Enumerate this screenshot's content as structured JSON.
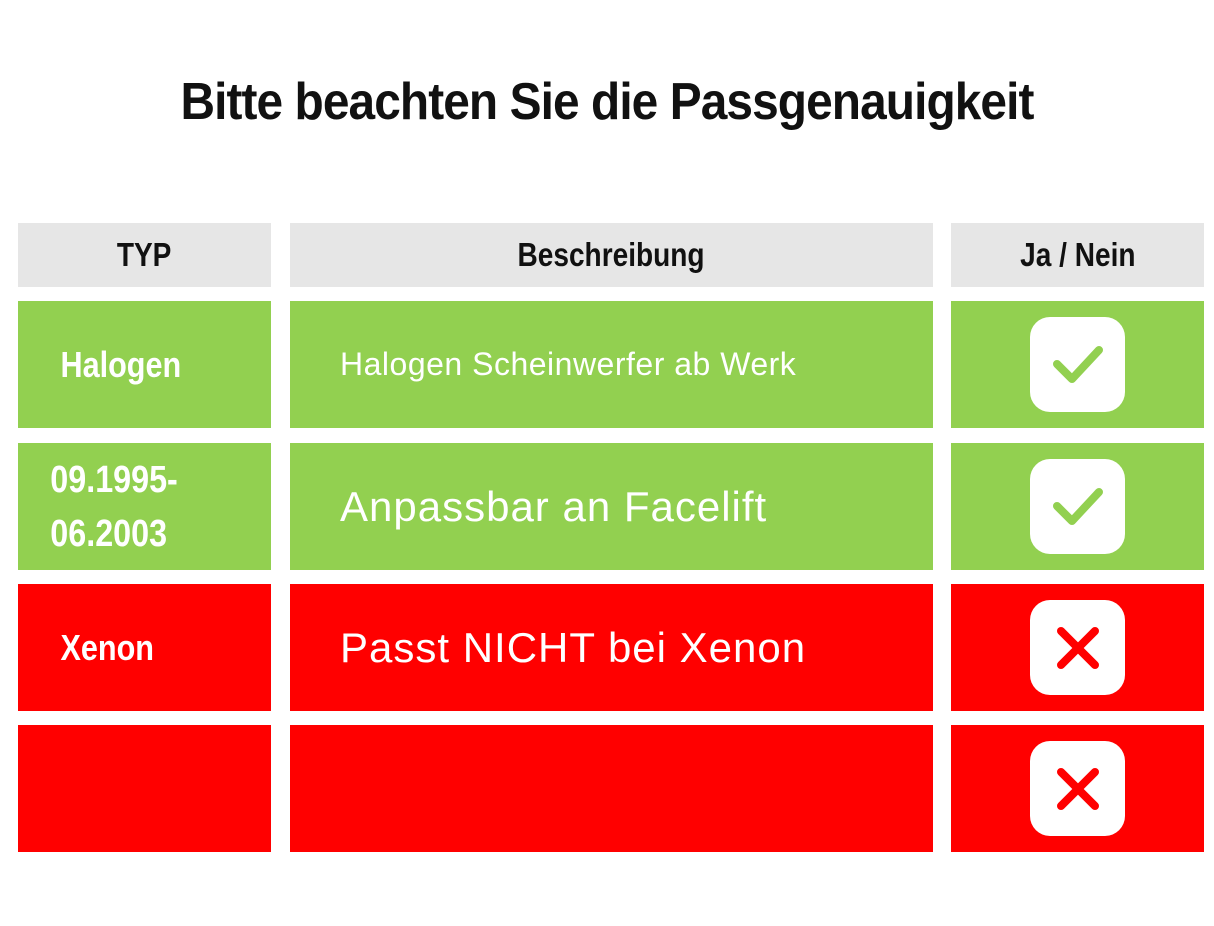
{
  "title": "Bitte beachten Sie die Passgenauigkeit",
  "headers": {
    "type": "TYP",
    "description": "Beschreibung",
    "yes_no": "Ja / Nein"
  },
  "rows": [
    {
      "type": "Halogen",
      "description": "Halogen Scheinwerfer ab Werk",
      "status": "yes",
      "icon": "check-icon",
      "color": "#92d050"
    },
    {
      "type": "09.1995-\n06.2003",
      "description": "Anpassbar an Facelift",
      "status": "yes",
      "icon": "check-icon",
      "color": "#92d050"
    },
    {
      "type": "Xenon",
      "description": "Passt NICHT bei Xenon",
      "status": "no",
      "icon": "cross-icon",
      "color": "#ff0000"
    },
    {
      "type": "",
      "description": "",
      "status": "no",
      "icon": "cross-icon",
      "color": "#ff0000"
    }
  ],
  "colors": {
    "header_bg": "#e6e6e6",
    "yes_bg": "#92d050",
    "no_bg": "#ff0000",
    "check": "#92d050",
    "cross": "#ff0000"
  }
}
